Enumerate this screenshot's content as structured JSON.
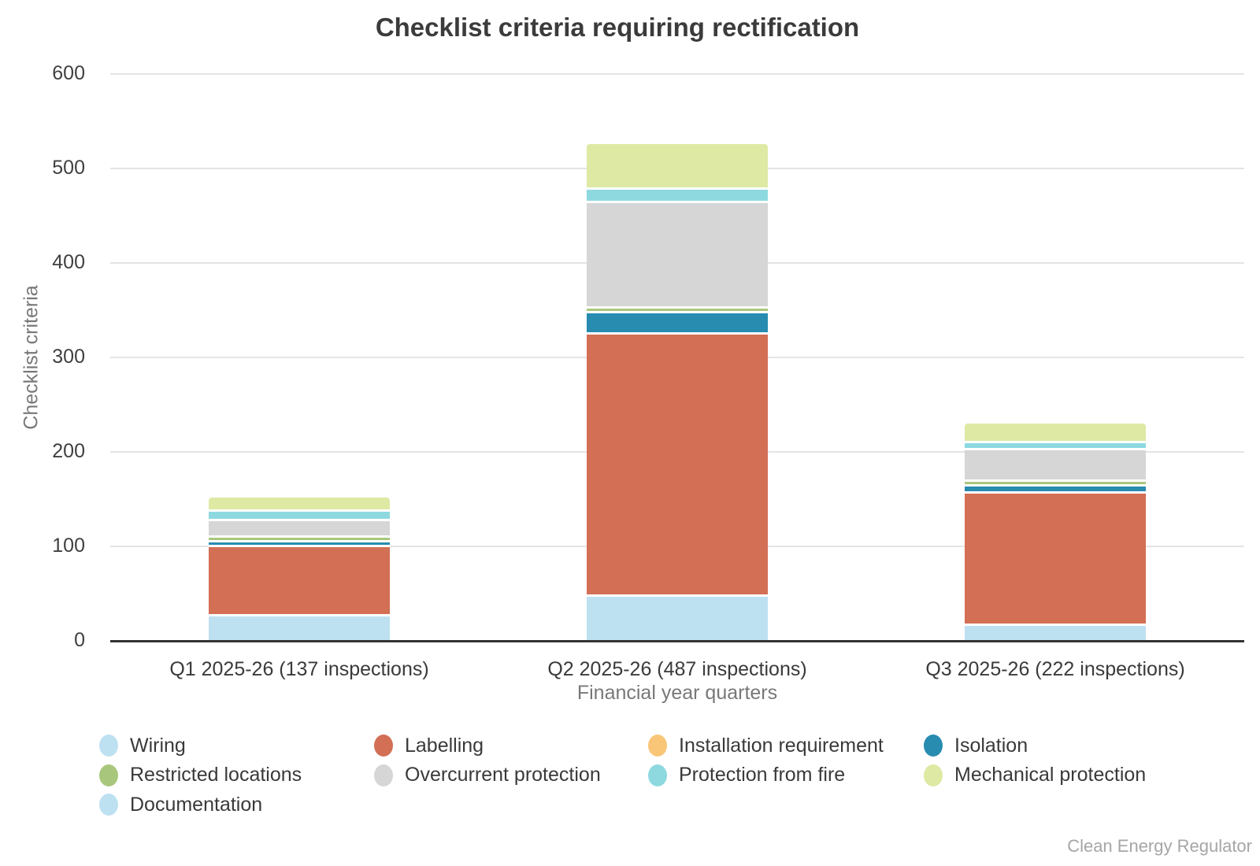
{
  "title": "Checklist criteria requiring rectification",
  "attribution": "Clean Energy Regulator",
  "chart_data": {
    "type": "bar",
    "stacked": true,
    "title": "Checklist criteria requiring rectification",
    "xlabel": "Financial year quarters",
    "ylabel": "Checklist criteria",
    "ylim": [
      0,
      600
    ],
    "ytick_step": 100,
    "grid": true,
    "legend_position": "bottom",
    "categories": [
      "Q1 2025-26 (137 inspections)",
      "Q2 2025-26 (487 inspections)",
      "Q3 2025-26 (222 inspections)"
    ],
    "totals": [
      152,
      526,
      230
    ],
    "series": [
      {
        "name": "Wiring",
        "color": "#bee1f2",
        "values": [
          28,
          49,
          18
        ]
      },
      {
        "name": "Labelling",
        "color": "#d36f55",
        "values": [
          74,
          278,
          140
        ]
      },
      {
        "name": "Installation requirement",
        "color": "#f9c678",
        "values": [
          0,
          0,
          0
        ]
      },
      {
        "name": "Isolation",
        "color": "#288bb0",
        "values": [
          5,
          22,
          8
        ]
      },
      {
        "name": "Restricted locations",
        "color": "#a9c77c",
        "values": [
          5,
          5,
          5
        ]
      },
      {
        "name": "Overcurrent protection",
        "color": "#d6d6d6",
        "values": [
          17,
          112,
          33
        ]
      },
      {
        "name": "Protection from fire",
        "color": "#8ed9e0",
        "values": [
          10,
          14,
          8
        ]
      },
      {
        "name": "Mechanical protection",
        "color": "#dee9a4",
        "values": [
          13,
          46,
          18
        ]
      },
      {
        "name": "Documentation",
        "color": "#bee1f2",
        "values": [
          0,
          0,
          0
        ]
      }
    ]
  }
}
